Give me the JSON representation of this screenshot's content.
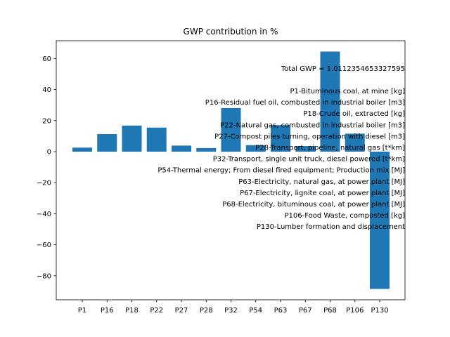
{
  "chart_data": {
    "type": "bar",
    "title": "GWP contribution in %",
    "xlabel": "",
    "ylabel": "",
    "categories": [
      "P1",
      "P16",
      "P18",
      "P22",
      "P27",
      "P28",
      "P32",
      "P54",
      "P63",
      "P67",
      "P68",
      "P106",
      "P130"
    ],
    "values": [
      2.6,
      11.3,
      16.8,
      15.5,
      3.9,
      2.3,
      28.1,
      4.2,
      17.1,
      3.6,
      64.5,
      11.6,
      -88.5
    ],
    "ylim": [
      -95.5,
      71.5
    ],
    "yticks": [
      -80,
      -60,
      -40,
      -20,
      0,
      20,
      40,
      60
    ],
    "ytick_labels": [
      "−80",
      "−60",
      "−40",
      "−20",
      "0",
      "20",
      "40",
      "60"
    ],
    "bar_color": "#1f77b4",
    "grid": false,
    "annotation": {
      "total": "Total GWP = 1.0112354653327595",
      "lines": [
        "P1-Bituminous coal, at mine [kg]",
        "P16-Residual fuel oil, combusted in industrial boiler [m3]",
        "P18-Crude oil, extracted [kg]",
        "P22-Natural gas, combusted in industrial boiler [m3]",
        "P27-Compost piles turning, operation with diesel [m3]",
        "P28-Transport, pipeline, natural gas [t*km]",
        "P32-Transport, single unit truck, diesel powered [t*km]",
        "P54-Thermal energy; From diesel fired equipment; Production mix [MJ]",
        "P63-Electricity, natural gas, at power plant [MJ]",
        "P67-Electricity, lignite coal, at power plant [MJ]",
        "P68-Electricity, bituminous coal, at power plant [MJ]",
        "P106-Food Waste, composted [kg]",
        "P130-Lumber formation and displacement"
      ]
    }
  }
}
